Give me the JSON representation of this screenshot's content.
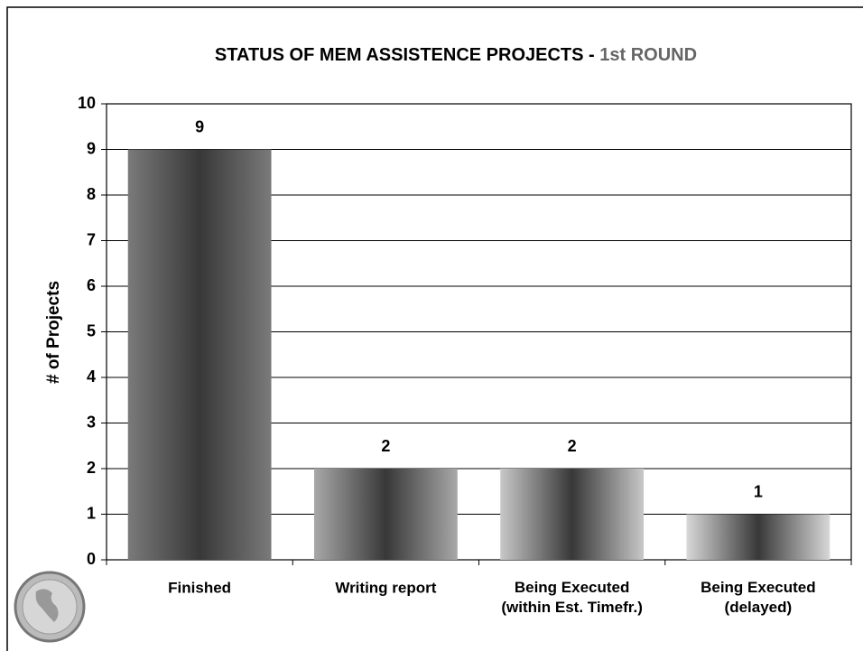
{
  "chart_data": {
    "type": "bar",
    "title": "STATUS OF MEM ASSISTENCE PROJECTS -",
    "subtitle": "1st ROUND",
    "y_label": "# of Projects",
    "categories": [
      "Finished",
      "Writing report",
      "Being Executed\n(within Est. Timefr.)",
      "Being Executed\n(delayed)"
    ],
    "values": [
      9,
      2,
      2,
      1
    ],
    "colors": [
      "#7a7a7a",
      "#a8a8a8",
      "#c8c8c8",
      "#d8d8d8"
    ],
    "ylim": [
      0,
      10
    ],
    "yticks": [
      0,
      1,
      2,
      3,
      4,
      5,
      6,
      7,
      8,
      9,
      10
    ],
    "grid": true
  }
}
